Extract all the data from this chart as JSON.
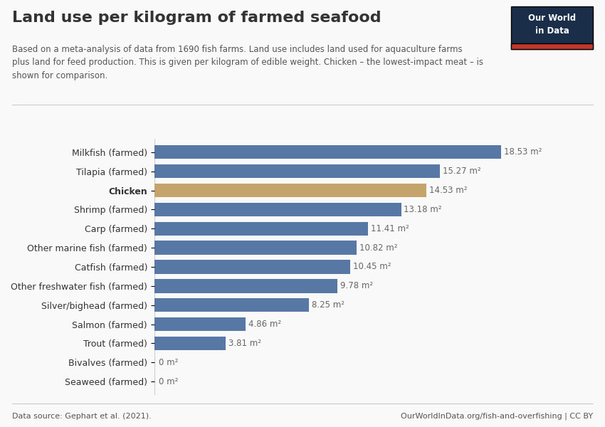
{
  "title": "Land use per kilogram of farmed seafood",
  "subtitle": "Based on a meta-analysis of data from 1690 fish farms. Land use includes land used for aquaculture farms\nplus land for feed production. This is given per kilogram of edible weight. Chicken – the lowest-impact meat – is\nshown for comparison.",
  "categories": [
    "Milkfish (farmed)",
    "Tilapia (farmed)",
    "Chicken",
    "Shrimp (farmed)",
    "Carp (farmed)",
    "Other marine fish (farmed)",
    "Catfish (farmed)",
    "Other freshwater fish (farmed)",
    "Silver/bighead (farmed)",
    "Salmon (farmed)",
    "Trout (farmed)",
    "Bivalves (farmed)",
    "Seaweed (farmed)"
  ],
  "values": [
    18.53,
    15.27,
    14.53,
    13.18,
    11.41,
    10.82,
    10.45,
    9.78,
    8.25,
    4.86,
    3.81,
    0,
    0
  ],
  "labels": [
    "18.53 m²",
    "15.27 m²",
    "14.53 m²",
    "13.18 m²",
    "11.41 m²",
    "10.82 m²",
    "10.45 m²",
    "9.78 m²",
    "8.25 m²",
    "4.86 m²",
    "3.81 m²",
    "0 m²",
    "0 m²"
  ],
  "bar_colors": [
    "#5778a4",
    "#5778a4",
    "#c4a46b",
    "#5778a4",
    "#5778a4",
    "#5778a4",
    "#5778a4",
    "#5778a4",
    "#5778a4",
    "#5778a4",
    "#5778a4",
    "#5778a4",
    "#5778a4"
  ],
  "background_color": "#f9f9f9",
  "text_color": "#333333",
  "footer_left": "Data source: Gephart et al. (2021).",
  "footer_right": "OurWorldInData.org/fish-and-overfishing | CC BY",
  "owid_box_bg": "#1a2e4a",
  "owid_box_red": "#c0392b",
  "xlim": [
    0,
    21
  ]
}
